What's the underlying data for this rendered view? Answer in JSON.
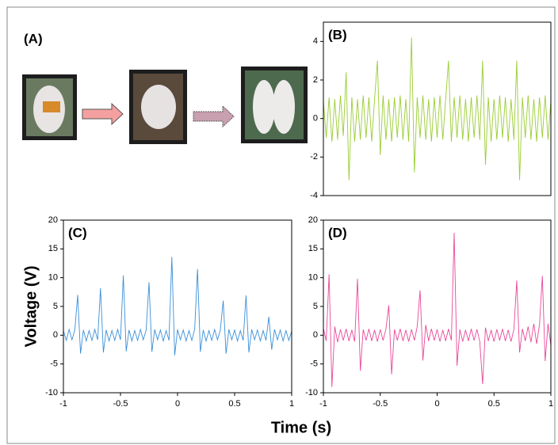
{
  "panel_a": {
    "label": "(A)"
  },
  "shared_axes": {
    "ylabel": "Voltage (V)",
    "xlabel": "Time (s)"
  },
  "chart_data": [
    {
      "type": "line",
      "label": "(B)",
      "x": [
        -1,
        -0.975,
        -0.95,
        -0.925,
        -0.9,
        -0.875,
        -0.85,
        -0.825,
        -0.8,
        -0.775,
        -0.75,
        -0.725,
        -0.7,
        -0.675,
        -0.65,
        -0.625,
        -0.6,
        -0.575,
        -0.55,
        -0.525,
        -0.5,
        -0.475,
        -0.45,
        -0.425,
        -0.4,
        -0.375,
        -0.35,
        -0.325,
        -0.3,
        -0.275,
        -0.25,
        -0.225,
        -0.2,
        -0.175,
        -0.15,
        -0.125,
        -0.1,
        -0.075,
        -0.05,
        -0.025,
        0,
        0.025,
        0.05,
        0.075,
        0.1,
        0.125,
        0.15,
        0.175,
        0.2,
        0.225,
        0.25,
        0.275,
        0.3,
        0.325,
        0.35,
        0.375,
        0.4,
        0.425,
        0.45,
        0.475,
        0.5,
        0.525,
        0.55,
        0.575,
        0.6,
        0.625,
        0.65,
        0.675,
        0.7,
        0.725,
        0.75,
        0.775,
        0.8,
        0.825,
        0.85,
        0.875,
        0.9,
        0.925,
        0.95,
        0.975,
        1
      ],
      "series": [
        {
          "color": "#9acd32",
          "values": [
            0.9,
            -1.0,
            1.1,
            -1.2,
            1.0,
            -1.1,
            1.2,
            -0.9,
            2.4,
            -3.2,
            1.1,
            -1.2,
            1.0,
            -1.1,
            1.2,
            -1.0,
            1.1,
            -1.2,
            1.0,
            3.0,
            -1.9,
            1.2,
            -1.1,
            1.0,
            -1.2,
            1.1,
            -1.0,
            1.2,
            -1.1,
            1.0,
            -1.2,
            4.2,
            -2.8,
            1.1,
            -1.0,
            1.2,
            -1.1,
            1.0,
            -1.2,
            1.1,
            -1.0,
            1.2,
            -1.1,
            1.0,
            3.0,
            -1.2,
            1.1,
            -1.0,
            1.2,
            -1.1,
            1.0,
            -1.2,
            1.1,
            -1.0,
            1.2,
            -1.1,
            3.0,
            -2.4,
            1.1,
            -1.2,
            1.0,
            -1.1,
            1.2,
            -1.0,
            1.1,
            -1.2,
            1.0,
            -1.1,
            3.0,
            -3.2,
            1.1,
            -1.0,
            1.2,
            -1.1,
            1.0,
            -1.2,
            1.1,
            -1.0,
            1.2,
            -1.1,
            0.9
          ]
        }
      ],
      "xlim": [
        -1,
        1
      ],
      "ylim": [
        -4,
        5
      ],
      "yticks": [
        -4,
        -2,
        0,
        2,
        4
      ]
    },
    {
      "type": "line",
      "label": "(C)",
      "x": [
        -1,
        -0.975,
        -0.95,
        -0.925,
        -0.9,
        -0.875,
        -0.85,
        -0.825,
        -0.8,
        -0.775,
        -0.75,
        -0.725,
        -0.7,
        -0.675,
        -0.65,
        -0.625,
        -0.6,
        -0.575,
        -0.55,
        -0.525,
        -0.5,
        -0.475,
        -0.45,
        -0.425,
        -0.4,
        -0.375,
        -0.35,
        -0.325,
        -0.3,
        -0.275,
        -0.25,
        -0.225,
        -0.2,
        -0.175,
        -0.15,
        -0.125,
        -0.1,
        -0.075,
        -0.05,
        -0.025,
        0,
        0.025,
        0.05,
        0.075,
        0.1,
        0.125,
        0.15,
        0.175,
        0.2,
        0.225,
        0.25,
        0.275,
        0.3,
        0.325,
        0.35,
        0.375,
        0.4,
        0.425,
        0.45,
        0.475,
        0.5,
        0.525,
        0.55,
        0.575,
        0.6,
        0.625,
        0.65,
        0.675,
        0.7,
        0.725,
        0.75,
        0.775,
        0.8,
        0.825,
        0.85,
        0.875,
        0.9,
        0.925,
        0.95,
        0.975,
        1
      ],
      "series": [
        {
          "color": "#3a8fd8",
          "values": [
            0.8,
            -0.9,
            1.0,
            -0.8,
            0.9,
            7.0,
            -3.2,
            0.9,
            -1.0,
            0.8,
            -0.9,
            1.0,
            -0.8,
            8.2,
            -3.0,
            0.9,
            -1.0,
            0.8,
            -0.9,
            1.0,
            -0.8,
            10.4,
            -2.8,
            0.9,
            -1.0,
            0.8,
            -0.9,
            1.0,
            -0.8,
            0.9,
            9.2,
            -2.9,
            1.0,
            -0.8,
            0.9,
            -1.0,
            0.8,
            -0.9,
            13.6,
            -3.5,
            1.0,
            -0.8,
            0.9,
            -1.0,
            0.8,
            -0.9,
            1.0,
            11.5,
            -2.9,
            0.9,
            -1.0,
            0.8,
            -0.9,
            1.0,
            -0.8,
            0.9,
            6.0,
            -3.2,
            1.0,
            -0.8,
            0.9,
            -1.0,
            0.8,
            -0.9,
            6.9,
            -3.0,
            1.0,
            -0.8,
            0.9,
            -1.0,
            0.8,
            -0.9,
            3.2,
            -2.5,
            1.0,
            -0.8,
            0.9,
            -1.0,
            0.8,
            -0.9,
            0.7
          ]
        }
      ],
      "xlim": [
        -1,
        1
      ],
      "xticks": [
        -1,
        -0.5,
        0,
        0.5,
        1
      ],
      "ylim": [
        -10,
        20
      ],
      "yticks": [
        -10,
        -5,
        0,
        5,
        10,
        15,
        20
      ]
    },
    {
      "type": "line",
      "label": "(D)",
      "x": [
        -1,
        -0.975,
        -0.95,
        -0.925,
        -0.9,
        -0.875,
        -0.85,
        -0.825,
        -0.8,
        -0.775,
        -0.75,
        -0.725,
        -0.7,
        -0.675,
        -0.65,
        -0.625,
        -0.6,
        -0.575,
        -0.55,
        -0.525,
        -0.5,
        -0.475,
        -0.45,
        -0.425,
        -0.4,
        -0.375,
        -0.35,
        -0.325,
        -0.3,
        -0.275,
        -0.25,
        -0.225,
        -0.2,
        -0.175,
        -0.15,
        -0.125,
        -0.1,
        -0.075,
        -0.05,
        -0.025,
        0,
        0.025,
        0.05,
        0.075,
        0.1,
        0.125,
        0.15,
        0.175,
        0.2,
        0.225,
        0.25,
        0.275,
        0.3,
        0.325,
        0.35,
        0.375,
        0.4,
        0.425,
        0.45,
        0.475,
        0.5,
        0.525,
        0.55,
        0.575,
        0.6,
        0.625,
        0.65,
        0.675,
        0.7,
        0.725,
        0.75,
        0.775,
        0.8,
        0.825,
        0.85,
        0.875,
        0.9,
        0.925,
        0.95,
        0.975,
        1
      ],
      "series": [
        {
          "color": "#e8489a",
          "values": [
            1.2,
            -1.0,
            10.6,
            -9.0,
            1.5,
            -1.2,
            1.0,
            -0.9,
            1.1,
            -1.0,
            0.9,
            -1.1,
            9.8,
            -6.2,
            1.0,
            -0.9,
            1.1,
            -1.0,
            0.9,
            -1.1,
            1.0,
            -0.9,
            1.1,
            5.2,
            -6.8,
            1.0,
            -0.9,
            1.1,
            -1.0,
            0.9,
            -1.1,
            1.0,
            -0.9,
            1.5,
            7.8,
            -4.4,
            1.8,
            -1.0,
            1.1,
            -0.9,
            1.0,
            -1.1,
            0.9,
            -1.0,
            1.1,
            -0.9,
            17.8,
            -5.3,
            1.0,
            -1.1,
            0.9,
            -1.0,
            1.1,
            -0.9,
            1.0,
            -1.1,
            -8.5,
            1.3,
            -1.0,
            0.9,
            -1.1,
            1.0,
            -0.9,
            1.1,
            -1.0,
            0.9,
            -1.1,
            1.0,
            9.5,
            -3.0,
            1.1,
            -1.0,
            1.5,
            -1.2,
            2.0,
            -1.5,
            1.8,
            10.3,
            -4.5,
            2.0,
            -1.8
          ]
        }
      ],
      "xlim": [
        -1,
        1
      ],
      "xticks": [
        -1,
        -0.5,
        0,
        0.5,
        1
      ],
      "ylim": [
        -10,
        20
      ],
      "yticks": [
        -10,
        -5,
        0,
        5,
        10,
        15,
        20
      ]
    }
  ]
}
